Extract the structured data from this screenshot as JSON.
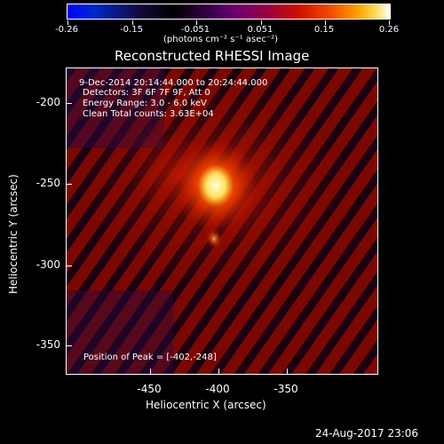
{
  "colorbar": {
    "tick_labels": [
      "-0.26",
      "-0.15",
      "-0.051",
      "0.051",
      "0.15",
      "0.26"
    ],
    "unit_label": "(photons cm⁻² s⁻¹ asec⁻²)"
  },
  "plot": {
    "title": "Reconstructed RHESSI Image",
    "time_range": "9-Dec-2014 20:14:44.000 to 20:24:44.000",
    "detectors": "Detectors: 3F 6F 7F 9F, Att 0",
    "energy_range": "Energy Range: 3.0 - 6.0 keV",
    "clean_counts": "Clean    Total counts: 3.63E+04",
    "peak_position": "Position of Peak = [-402,-248]",
    "x_axis_label": "Heliocentric X (arcsec)",
    "y_axis_label": "Heliocentric Y (arcsec)",
    "x_ticks": [
      "-450",
      "-400",
      "-350"
    ],
    "y_ticks": [
      "-200",
      "-250",
      "-300",
      "-350"
    ]
  },
  "footer": {
    "date": "24-Aug-2017 23:06"
  },
  "colors": {
    "background": "#000000",
    "source_peak": "#ffffc0",
    "mid_red": "#c01000",
    "dark_band": "#1a0010"
  }
}
